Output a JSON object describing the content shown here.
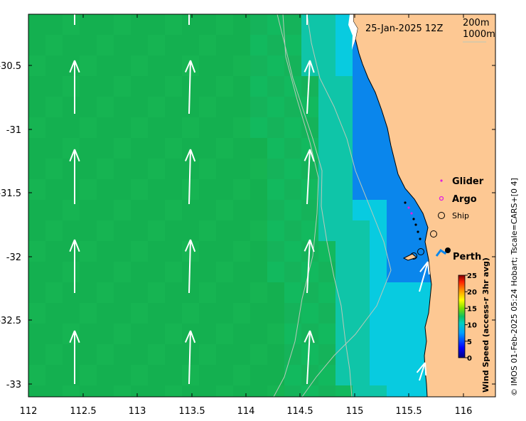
{
  "map": {
    "timestamp": "25-Jan-2025 12Z",
    "contours": [
      "200m",
      "1000m"
    ],
    "x_ticks": [
      "112",
      "112.5",
      "113",
      "113.5",
      "114",
      "114.5",
      "115",
      "115.5",
      "116"
    ],
    "y_ticks": [
      "-30.5",
      "-31",
      "-31.5",
      "-32",
      "-32.5",
      "-33"
    ],
    "legend": {
      "glider": "Glider",
      "argo": "Argo",
      "ship": "Ship"
    },
    "city": "Perth",
    "colorbar": {
      "title": "Wind Speed (access-r 3hr avg)",
      "ticks": [
        "25",
        "20",
        "15",
        "10",
        "5",
        "0"
      ]
    },
    "credit": "© IMOS 01-Feb-2025 05:24 Hobart; Tscale=CARS+[0 4]",
    "colors": {
      "land": "#fdc893",
      "ocean_green": "#14b354",
      "ocean_teal": "#0fc5a8",
      "ocean_cyan": "#08cbe0",
      "ocean_blue": "#0a86ec",
      "arrow": "#ffffff",
      "glider": "#e020e0",
      "argo": "#e020e0"
    }
  }
}
